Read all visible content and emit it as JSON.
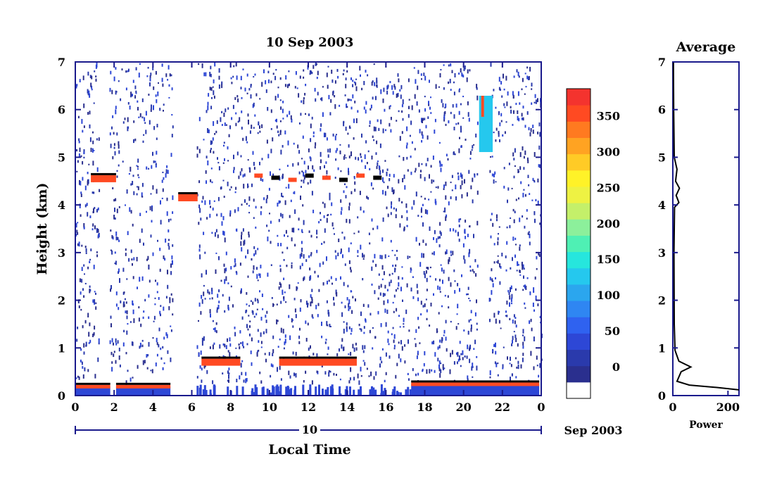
{
  "title": "10 Sep 2003",
  "chart_data": [
    {
      "type": "heatmap",
      "title": "10 Sep 2003",
      "xlabel": "Local Time",
      "ylabel": "Height (km)",
      "xlim": [
        0,
        24
      ],
      "ylim": [
        0,
        7
      ],
      "x_ticks": [
        "0",
        "2",
        "4",
        "6",
        "8",
        "10",
        "12",
        "14",
        "16",
        "18",
        "20",
        "22",
        "0"
      ],
      "y_ticks": [
        "0",
        "1",
        "2",
        "3",
        "4",
        "5",
        "6",
        "7"
      ],
      "date_bar_label": "10",
      "date_right_label": "Sep 2003",
      "colorbar": {
        "ticks": [
          "0",
          "50",
          "100",
          "150",
          "200",
          "250",
          "300",
          "350"
        ],
        "colors": [
          "#ffffff",
          "#2a2f8e",
          "#2a3aac",
          "#2d47d6",
          "#2f62f0",
          "#2f86f2",
          "#2ba6ee",
          "#25c8ee",
          "#26e6dd",
          "#4ff0b4",
          "#8cf09b",
          "#c4f06a",
          "#eef243",
          "#fff228",
          "#ffcb26",
          "#ffa322",
          "#ff7a20",
          "#ff4a22",
          "#f4332e"
        ]
      },
      "features": [
        {
          "x": [
            0.0,
            1.8
          ],
          "height_km": 0.15,
          "kind": "surface layer"
        },
        {
          "x": [
            2.1,
            4.9
          ],
          "height_km": 0.15,
          "kind": "surface layer"
        },
        {
          "x": [
            5.3,
            6.3
          ],
          "height_km": 4.15,
          "kind": "cloud layer"
        },
        {
          "x": [
            6.5,
            8.5
          ],
          "height_km": 0.7,
          "kind": "boundary layer top"
        },
        {
          "x": [
            10.5,
            14.5
          ],
          "height_km": 0.7,
          "kind": "boundary layer top"
        },
        {
          "x": [
            17.3,
            23.9
          ],
          "height_km": 0.2,
          "kind": "surface layer"
        },
        {
          "x": [
            0.8,
            2.1
          ],
          "height_km": 4.55,
          "kind": "cloud layer"
        },
        {
          "x": [
            9.0,
            16.0
          ],
          "height_km": 4.6,
          "kind": "scattered echoes"
        },
        {
          "x": [
            20.8,
            21.5
          ],
          "height_km": 5.7,
          "kind": "precipitation streak"
        }
      ]
    },
    {
      "type": "line",
      "title": "Average",
      "xlabel": "Power",
      "ylabel": "",
      "xlim": [
        0,
        240
      ],
      "ylim": [
        0,
        7
      ],
      "x_ticks": [
        "0",
        "200"
      ],
      "y_ticks": [
        "0",
        "1",
        "2",
        "3",
        "4",
        "5",
        "6",
        "7"
      ],
      "series": [
        {
          "values": [
            {
              "power": 240,
              "height": 0.12
            },
            {
              "power": 160,
              "height": 0.17
            },
            {
              "power": 60,
              "height": 0.22
            },
            {
              "power": 15,
              "height": 0.3
            },
            {
              "power": 30,
              "height": 0.5
            },
            {
              "power": 65,
              "height": 0.6
            },
            {
              "power": 22,
              "height": 0.72
            },
            {
              "power": 8,
              "height": 0.95
            },
            {
              "power": 5,
              "height": 1.5
            },
            {
              "power": 4,
              "height": 3.0
            },
            {
              "power": 6,
              "height": 3.95
            },
            {
              "power": 22,
              "height": 4.05
            },
            {
              "power": 12,
              "height": 4.2
            },
            {
              "power": 24,
              "height": 4.35
            },
            {
              "power": 10,
              "height": 4.5
            },
            {
              "power": 15,
              "height": 4.75
            },
            {
              "power": 5,
              "height": 5.0
            },
            {
              "power": 3,
              "height": 6.0
            },
            {
              "power": 2,
              "height": 7.0
            }
          ]
        }
      ]
    }
  ]
}
